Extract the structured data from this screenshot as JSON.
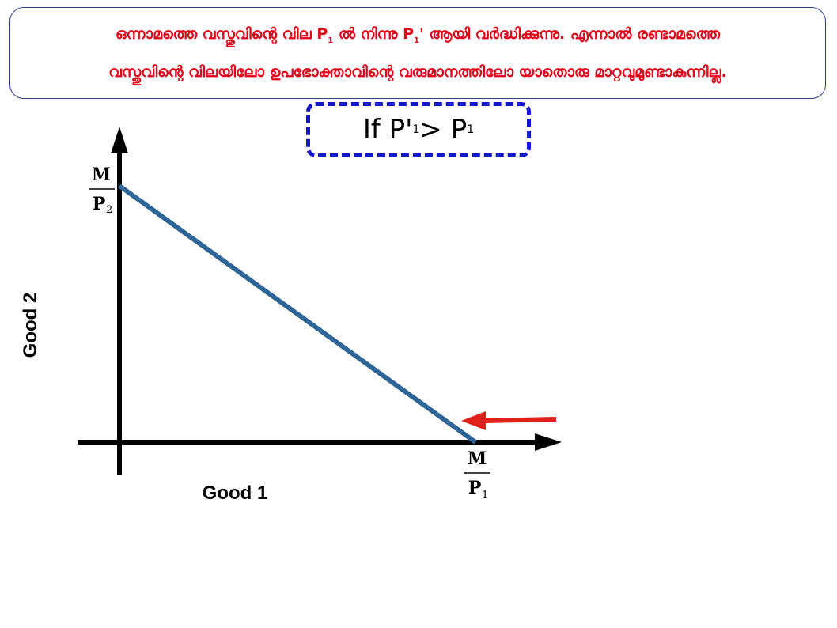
{
  "note": {
    "line1": {
      "a": "ഒന്നാമത്തെ വസ്തുവിന്റെ വില P",
      "a_sub": "1",
      "b": " ല്‍ നിന്നു P",
      "b_sub": "1",
      "c": "' ആയി വര്‍ദ്ധിക്കുന്നു. എന്നാല്‍ രണ്ടാമത്തെ"
    },
    "line2": "വസ്തുവിന്റെ വിലയിലോ ഉപഭോക്താവിന്റെ വരുമാനത്തിലോ യാതൊരു മാറ്റവുമുണ്ടാകുന്നില്ല."
  },
  "condition": {
    "prefix": "If P'",
    "sub1": "1",
    "op": " > P",
    "sub2": "1"
  },
  "axes": {
    "x_label": "Good 1",
    "y_label": "Good 2"
  },
  "intercepts": {
    "y": {
      "numerator": "M",
      "denominator": "P",
      "denominator_sub": "2"
    },
    "x": {
      "numerator": "M",
      "denominator": "P",
      "denominator_sub": "1"
    }
  },
  "colors": {
    "budget_line": "#2e6496",
    "arrow": "#e0201a",
    "note_text": "#e0001a",
    "note_border": "#2b3f8a",
    "condition_border": "#1418c8",
    "axes": "#000000"
  }
}
